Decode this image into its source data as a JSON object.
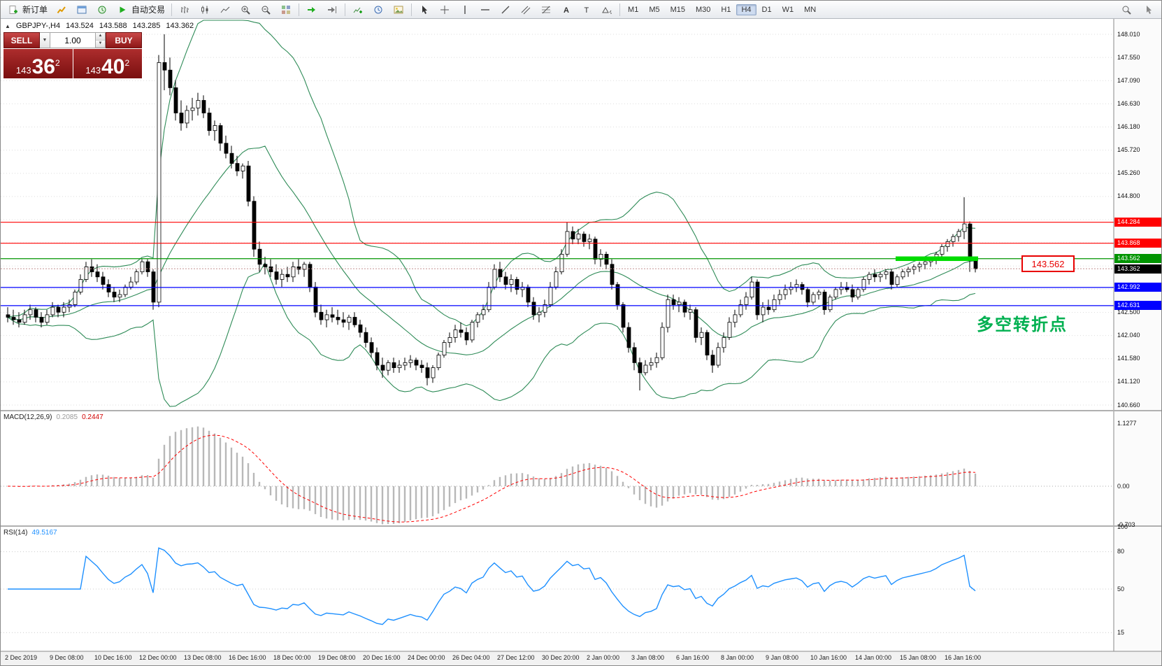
{
  "toolbar": {
    "new_order_label": "新订单",
    "autotrading_label": "自动交易",
    "timeframes": [
      "M1",
      "M5",
      "M15",
      "M30",
      "H1",
      "H4",
      "D1",
      "W1",
      "MN"
    ],
    "active_timeframe": "H4",
    "icon_names": [
      "new-order-icon",
      "market-watch-icon",
      "data-window-icon",
      "navigator-icon",
      "autotrading-icon",
      "bar-chart-icon",
      "candlestick-chart-icon",
      "line-chart-icon",
      "zoom-in-icon",
      "zoom-out-icon",
      "tile-windows-icon",
      "auto-scroll-icon",
      "chart-shift-icon",
      "indicators-icon",
      "periods-icon",
      "templates-icon",
      "cursor-icon",
      "crosshair-icon",
      "vertical-line-icon",
      "horizontal-line-icon",
      "trendline-icon",
      "channel-icon",
      "fibonacci-icon",
      "text-icon",
      "text-label-icon",
      "shapes-icon",
      "search-icon",
      "pointer-icon"
    ]
  },
  "chart": {
    "symbol_info": {
      "marker": "▲",
      "symbol": "GBPJPY-,H4",
      "open": "143.524",
      "high": "143.588",
      "low": "143.285",
      "close": "143.362"
    },
    "trade_panel": {
      "sell_label": "SELL",
      "buy_label": "BUY",
      "lot_value": "1.00",
      "sell_price": {
        "prefix": "143",
        "big": "36",
        "sup": "2"
      },
      "buy_price": {
        "prefix": "143",
        "big": "40",
        "sup": "2"
      }
    },
    "callout_text": "143.562",
    "annotation_text": "多空转折点"
  },
  "chart_data": {
    "type": "candlestick",
    "symbol": "GBPJPY-",
    "timeframe": "H4",
    "ylim": [
      140.66,
      148.01
    ],
    "grid": true,
    "bollinger": {
      "period": 20,
      "deviation": 2,
      "color": "#2e8b57"
    },
    "horizontal_levels": [
      {
        "price": 144.284,
        "color": "#ff0000",
        "label": "144.284"
      },
      {
        "price": 143.868,
        "color": "#ff0000",
        "label": "143.868"
      },
      {
        "price": 143.562,
        "color": "#009400",
        "label": "143.562"
      },
      {
        "price": 142.992,
        "color": "#0000ff",
        "label": "142.992"
      },
      {
        "price": 142.631,
        "color": "#0000ff",
        "label": "142.631"
      }
    ],
    "current_price": {
      "price": 143.362,
      "label": "143.362",
      "color": "#000000"
    },
    "highlight_segment": {
      "price": 143.562,
      "color": "#00dc00"
    },
    "y_axis_labels": [
      "148.010",
      "147.550",
      "147.090",
      "146.630",
      "146.180",
      "145.720",
      "145.260",
      "144.800",
      "142.500",
      "142.040",
      "141.580",
      "141.120",
      "140.660"
    ],
    "x_axis_labels": [
      "2 Dec 2019",
      "9 Dec 08:00",
      "10 Dec 16:00",
      "12 Dec 00:00",
      "13 Dec 08:00",
      "16 Dec 16:00",
      "18 Dec 00:00",
      "19 Dec 08:00",
      "20 Dec 16:00",
      "24 Dec 00:00",
      "26 Dec 04:00",
      "27 Dec 12:00",
      "30 Dec 20:00",
      "2 Jan 00:00",
      "3 Jan 08:00",
      "6 Jan 16:00",
      "8 Jan 00:00",
      "9 Jan 08:00",
      "10 Jan 16:00",
      "14 Jan 00:00",
      "15 Jan 08:00",
      "16 Jan 16:00"
    ],
    "indicators": {
      "macd": {
        "label": "MACD(12,26,9)",
        "value_main": "0.2085",
        "value_signal": "0.2447",
        "histogram_color": "#b8b8b8",
        "signal_color": "#ff0000",
        "scale": [
          {
            "label": "1.1277",
            "value": 1.1277
          },
          {
            "label": "0.00",
            "value": 0
          },
          {
            "label": "-0.703",
            "value": -0.703
          }
        ]
      },
      "rsi": {
        "label": "RSI(14)",
        "value": "49.5167",
        "color": "#1e90ff",
        "levels": [
          80,
          50,
          15
        ],
        "scale": [
          {
            "label": "100",
            "value": 100
          },
          {
            "label": "80",
            "value": 80
          },
          {
            "label": "50",
            "value": 50
          },
          {
            "label": "15",
            "value": 15
          }
        ]
      }
    },
    "candles": [
      [
        142.45,
        142.6,
        142.3,
        142.4
      ],
      [
        142.4,
        142.55,
        142.25,
        142.35
      ],
      [
        142.35,
        142.5,
        142.2,
        142.3
      ],
      [
        142.3,
        142.55,
        142.25,
        142.45
      ],
      [
        142.45,
        142.65,
        142.35,
        142.55
      ],
      [
        142.55,
        142.6,
        142.3,
        142.4
      ],
      [
        142.4,
        142.5,
        142.2,
        142.3
      ],
      [
        142.3,
        142.55,
        142.25,
        142.45
      ],
      [
        142.45,
        142.7,
        142.4,
        142.6
      ],
      [
        142.6,
        142.65,
        142.4,
        142.5
      ],
      [
        142.5,
        142.7,
        142.4,
        142.6
      ],
      [
        142.6,
        142.75,
        142.5,
        142.65
      ],
      [
        142.65,
        142.95,
        142.6,
        142.9
      ],
      [
        142.9,
        143.25,
        142.85,
        143.15
      ],
      [
        143.15,
        143.5,
        143.1,
        143.4
      ],
      [
        143.4,
        143.55,
        143.2,
        143.3
      ],
      [
        143.3,
        143.45,
        143.1,
        143.2
      ],
      [
        143.2,
        143.3,
        142.95,
        143.05
      ],
      [
        143.05,
        143.15,
        142.8,
        142.9
      ],
      [
        142.9,
        143.0,
        142.7,
        142.8
      ],
      [
        142.8,
        142.95,
        142.7,
        142.85
      ],
      [
        142.85,
        143.05,
        142.8,
        143.0
      ],
      [
        143.0,
        143.2,
        142.95,
        143.1
      ],
      [
        143.1,
        143.35,
        143.05,
        143.3
      ],
      [
        143.3,
        143.55,
        143.25,
        143.5
      ],
      [
        143.5,
        143.55,
        143.2,
        143.3
      ],
      [
        143.3,
        143.35,
        142.55,
        142.7
      ],
      [
        142.7,
        147.6,
        142.6,
        147.45
      ],
      [
        147.45,
        148.01,
        146.9,
        147.3
      ],
      [
        147.3,
        147.55,
        146.8,
        146.95
      ],
      [
        146.95,
        147.1,
        146.3,
        146.45
      ],
      [
        146.45,
        146.7,
        146.1,
        146.25
      ],
      [
        146.25,
        146.6,
        146.15,
        146.5
      ],
      [
        146.5,
        146.75,
        146.3,
        146.55
      ],
      [
        146.55,
        146.85,
        146.4,
        146.7
      ],
      [
        146.7,
        146.8,
        146.35,
        146.45
      ],
      [
        146.45,
        146.55,
        146.0,
        146.1
      ],
      [
        146.1,
        146.3,
        145.9,
        146.2
      ],
      [
        146.2,
        146.25,
        145.7,
        145.85
      ],
      [
        145.85,
        146.0,
        145.55,
        145.65
      ],
      [
        145.65,
        145.8,
        145.35,
        145.45
      ],
      [
        145.45,
        145.6,
        145.2,
        145.3
      ],
      [
        145.3,
        145.45,
        145.15,
        145.4
      ],
      [
        145.4,
        145.5,
        144.6,
        144.7
      ],
      [
        144.7,
        144.8,
        143.6,
        143.75
      ],
      [
        143.75,
        143.9,
        143.3,
        143.45
      ],
      [
        143.45,
        143.6,
        143.25,
        143.4
      ],
      [
        143.4,
        143.55,
        143.2,
        143.3
      ],
      [
        143.3,
        143.45,
        143.05,
        143.15
      ],
      [
        143.15,
        143.35,
        143.0,
        143.25
      ],
      [
        143.25,
        143.4,
        143.1,
        143.2
      ],
      [
        143.2,
        143.5,
        143.1,
        143.4
      ],
      [
        143.4,
        143.55,
        143.25,
        143.35
      ],
      [
        143.35,
        143.5,
        143.2,
        143.45
      ],
      [
        143.45,
        143.5,
        142.9,
        143.0
      ],
      [
        143.0,
        143.1,
        142.4,
        142.5
      ],
      [
        142.5,
        142.65,
        142.25,
        142.35
      ],
      [
        142.35,
        142.55,
        142.2,
        142.45
      ],
      [
        142.45,
        142.6,
        142.3,
        142.4
      ],
      [
        142.4,
        142.55,
        142.25,
        142.35
      ],
      [
        142.35,
        142.5,
        142.2,
        142.3
      ],
      [
        142.3,
        142.45,
        142.15,
        142.4
      ],
      [
        142.4,
        142.5,
        142.2,
        142.25
      ],
      [
        142.25,
        142.35,
        142.0,
        142.1
      ],
      [
        142.1,
        142.2,
        141.8,
        141.9
      ],
      [
        141.9,
        142.0,
        141.6,
        141.7
      ],
      [
        141.7,
        141.8,
        141.35,
        141.45
      ],
      [
        141.45,
        141.6,
        141.2,
        141.35
      ],
      [
        141.35,
        141.55,
        141.25,
        141.5
      ],
      [
        141.5,
        141.6,
        141.3,
        141.4
      ],
      [
        141.4,
        141.55,
        141.3,
        141.45
      ],
      [
        141.45,
        141.6,
        141.35,
        141.5
      ],
      [
        141.5,
        141.65,
        141.4,
        141.55
      ],
      [
        141.55,
        141.6,
        141.35,
        141.45
      ],
      [
        141.45,
        141.55,
        141.3,
        141.4
      ],
      [
        141.4,
        141.5,
        141.05,
        141.2
      ],
      [
        141.2,
        141.45,
        141.1,
        141.4
      ],
      [
        141.4,
        141.7,
        141.35,
        141.65
      ],
      [
        141.65,
        141.95,
        141.6,
        141.9
      ],
      [
        141.9,
        142.1,
        141.8,
        142.0
      ],
      [
        142.0,
        142.25,
        141.9,
        142.15
      ],
      [
        142.15,
        142.3,
        142.0,
        142.1
      ],
      [
        142.1,
        142.2,
        141.85,
        141.95
      ],
      [
        141.95,
        142.35,
        141.9,
        142.3
      ],
      [
        142.3,
        142.5,
        142.2,
        142.45
      ],
      [
        142.45,
        142.65,
        142.35,
        142.55
      ],
      [
        142.55,
        143.1,
        142.5,
        143.0
      ],
      [
        143.0,
        143.45,
        142.95,
        143.35
      ],
      [
        143.35,
        143.5,
        143.1,
        143.2
      ],
      [
        143.2,
        143.3,
        142.95,
        143.05
      ],
      [
        143.05,
        143.25,
        142.9,
        143.15
      ],
      [
        143.15,
        143.2,
        142.85,
        142.95
      ],
      [
        142.95,
        143.1,
        142.8,
        143.0
      ],
      [
        143.0,
        143.05,
        142.6,
        142.7
      ],
      [
        142.7,
        142.8,
        142.35,
        142.45
      ],
      [
        142.45,
        142.6,
        142.3,
        142.5
      ],
      [
        142.5,
        142.75,
        142.4,
        142.65
      ],
      [
        142.65,
        143.1,
        142.6,
        143.0
      ],
      [
        143.0,
        143.4,
        142.95,
        143.3
      ],
      [
        143.3,
        143.75,
        143.25,
        143.65
      ],
      [
        143.65,
        144.28,
        143.6,
        144.1
      ],
      [
        144.1,
        144.2,
        143.85,
        143.95
      ],
      [
        143.95,
        144.15,
        143.85,
        144.05
      ],
      [
        144.05,
        144.1,
        143.8,
        143.9
      ],
      [
        143.9,
        144.05,
        143.75,
        143.95
      ],
      [
        143.95,
        144.0,
        143.45,
        143.55
      ],
      [
        143.55,
        143.75,
        143.4,
        143.65
      ],
      [
        143.65,
        143.7,
        143.35,
        143.45
      ],
      [
        143.45,
        143.55,
        142.95,
        143.05
      ],
      [
        143.05,
        143.1,
        142.55,
        142.65
      ],
      [
        142.65,
        142.7,
        142.1,
        142.2
      ],
      [
        142.2,
        142.3,
        141.7,
        141.8
      ],
      [
        141.8,
        141.9,
        141.35,
        141.5
      ],
      [
        141.5,
        141.6,
        140.95,
        141.3
      ],
      [
        141.3,
        141.55,
        141.25,
        141.45
      ],
      [
        141.45,
        141.6,
        141.35,
        141.5
      ],
      [
        141.5,
        141.7,
        141.4,
        141.6
      ],
      [
        141.6,
        142.3,
        141.55,
        142.2
      ],
      [
        142.2,
        142.85,
        142.1,
        142.75
      ],
      [
        142.75,
        142.85,
        142.55,
        142.65
      ],
      [
        142.65,
        142.8,
        142.5,
        142.7
      ],
      [
        142.7,
        142.75,
        142.4,
        142.5
      ],
      [
        142.5,
        142.65,
        142.35,
        142.55
      ],
      [
        142.55,
        142.6,
        141.9,
        142.0
      ],
      [
        142.0,
        142.2,
        141.85,
        142.1
      ],
      [
        142.1,
        142.15,
        141.55,
        141.65
      ],
      [
        141.65,
        141.75,
        141.3,
        141.45
      ],
      [
        141.45,
        141.9,
        141.4,
        141.8
      ],
      [
        141.8,
        142.1,
        141.7,
        142.0
      ],
      [
        142.0,
        142.4,
        141.95,
        142.3
      ],
      [
        142.3,
        142.55,
        142.2,
        142.45
      ],
      [
        142.45,
        142.75,
        142.4,
        142.65
      ],
      [
        142.65,
        142.9,
        142.55,
        142.8
      ],
      [
        142.8,
        143.2,
        142.75,
        143.1
      ],
      [
        143.1,
        143.15,
        142.35,
        142.45
      ],
      [
        142.45,
        142.7,
        142.3,
        142.6
      ],
      [
        142.6,
        142.75,
        142.45,
        142.55
      ],
      [
        142.55,
        142.85,
        142.5,
        142.75
      ],
      [
        142.75,
        142.95,
        142.65,
        142.85
      ],
      [
        142.85,
        143.05,
        142.75,
        142.95
      ],
      [
        142.95,
        143.1,
        142.85,
        143.0
      ],
      [
        143.0,
        143.15,
        142.9,
        143.05
      ],
      [
        143.05,
        143.1,
        142.85,
        142.95
      ],
      [
        142.95,
        143.0,
        142.6,
        142.7
      ],
      [
        142.7,
        142.9,
        142.65,
        142.85
      ],
      [
        142.85,
        142.95,
        142.75,
        142.9
      ],
      [
        142.9,
        142.95,
        142.45,
        142.55
      ],
      [
        142.55,
        142.85,
        142.5,
        142.8
      ],
      [
        142.8,
        143.0,
        142.75,
        142.95
      ],
      [
        142.95,
        143.1,
        142.85,
        143.0
      ],
      [
        143.0,
        143.1,
        142.9,
        142.95
      ],
      [
        142.95,
        143.05,
        142.7,
        142.8
      ],
      [
        142.8,
        143.0,
        142.75,
        142.95
      ],
      [
        142.95,
        143.2,
        142.9,
        143.15
      ],
      [
        143.15,
        143.3,
        143.05,
        143.25
      ],
      [
        143.25,
        143.35,
        143.1,
        143.2
      ],
      [
        143.2,
        143.3,
        143.1,
        143.25
      ],
      [
        143.25,
        143.35,
        143.15,
        143.3
      ],
      [
        143.3,
        143.35,
        142.95,
        143.05
      ],
      [
        143.05,
        143.25,
        143.0,
        143.2
      ],
      [
        143.2,
        143.35,
        143.15,
        143.3
      ],
      [
        143.3,
        143.4,
        143.2,
        143.35
      ],
      [
        143.35,
        143.45,
        143.25,
        143.4
      ],
      [
        143.4,
        143.5,
        143.3,
        143.45
      ],
      [
        143.45,
        143.55,
        143.35,
        143.5
      ],
      [
        143.5,
        143.6,
        143.4,
        143.55
      ],
      [
        143.55,
        143.7,
        143.45,
        143.65
      ],
      [
        143.65,
        143.85,
        143.6,
        143.8
      ],
      [
        143.8,
        143.95,
        143.7,
        143.9
      ],
      [
        143.9,
        144.05,
        143.8,
        144.0
      ],
      [
        144.0,
        144.15,
        143.9,
        144.1
      ],
      [
        144.1,
        144.78,
        143.95,
        144.25
      ],
      [
        144.25,
        144.3,
        143.3,
        143.52
      ],
      [
        143.52,
        143.59,
        143.29,
        143.36
      ]
    ]
  }
}
